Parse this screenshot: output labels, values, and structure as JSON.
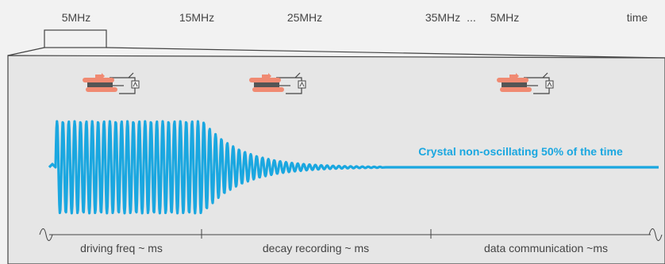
{
  "frequency_scale": {
    "labels": [
      "5MHz",
      "15MHz",
      "25MHz",
      "35MHz",
      "...",
      "5MHz"
    ],
    "end_label": "time"
  },
  "phases": [
    {
      "label": "driving freq ~ ms"
    },
    {
      "label": "decay recording ~ ms"
    },
    {
      "label": "data communication ~ms"
    }
  ],
  "caption": "Crystal non-oscillating 50% of the time",
  "colors": {
    "signal": "#1aa7e0",
    "crystal": "#f08a72",
    "crystal_core": "#555555",
    "frame": "#444444",
    "panel_fill": "#e6e6e6",
    "background": "#f2f2f2"
  },
  "icons": [
    "crystal-circuit-icon",
    "crystal-circuit-icon",
    "crystal-circuit-icon"
  ]
}
